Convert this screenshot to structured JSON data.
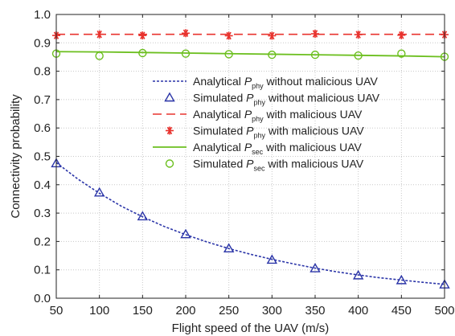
{
  "chart_data": {
    "type": "line",
    "title": "",
    "xlabel": "Flight speed of the UAV (m/s)",
    "ylabel": "Connectivity probability",
    "xlim": [
      50,
      500
    ],
    "ylim": [
      0.0,
      1.0
    ],
    "xticks": [
      "50",
      "100",
      "150",
      "200",
      "250",
      "300",
      "350",
      "400",
      "450",
      "500"
    ],
    "yticks": [
      "0.0",
      "0.1",
      "0.2",
      "0.3",
      "0.4",
      "0.5",
      "0.6",
      "0.7",
      "0.8",
      "0.9",
      "1.0"
    ],
    "grid": true,
    "legend_position": "center-right",
    "series": [
      {
        "name": "Analytical P_phy without malicious UAV",
        "legend": {
          "pre": "Analytical ",
          "sym": "P",
          "sub": "phy",
          "post": " without malicious UAV"
        },
        "style": "dotted-line",
        "color": "#2b35a8",
        "x": [
          50,
          75,
          100,
          125,
          150,
          175,
          200,
          225,
          250,
          275,
          300,
          325,
          350,
          375,
          400,
          425,
          450,
          475,
          500
        ],
        "y": [
          0.478,
          0.42,
          0.37,
          0.325,
          0.287,
          0.253,
          0.224,
          0.198,
          0.175,
          0.155,
          0.137,
          0.121,
          0.106,
          0.093,
          0.082,
          0.072,
          0.064,
          0.056,
          0.049
        ]
      },
      {
        "name": "Simulated P_phy without malicious UAV",
        "legend": {
          "pre": "Simulated ",
          "sym": "P",
          "sub": "phy",
          "post": " without malicious UAV"
        },
        "style": "triangle-marker",
        "color": "#2b35a8",
        "x": [
          50,
          100,
          150,
          200,
          250,
          300,
          350,
          400,
          450,
          500
        ],
        "y": [
          0.475,
          0.372,
          0.288,
          0.225,
          0.175,
          0.135,
          0.105,
          0.08,
          0.063,
          0.048
        ]
      },
      {
        "name": "Analytical P_phy with malicious UAV",
        "legend": {
          "pre": "Analytical ",
          "sym": "P",
          "sub": "phy",
          "post": " with malicious UAV"
        },
        "style": "dashed-line",
        "color": "#e8332e",
        "x": [
          50,
          500
        ],
        "y": [
          0.93,
          0.93
        ]
      },
      {
        "name": "Simulated P_phy with malicious UAV",
        "legend": {
          "pre": "Simulated ",
          "sym": "P",
          "sub": "phy",
          "post": " with malicious UAV"
        },
        "style": "asterisk-marker",
        "color": "#e8332e",
        "x": [
          50,
          100,
          150,
          200,
          250,
          300,
          350,
          400,
          450,
          500
        ],
        "y": [
          0.926,
          0.93,
          0.926,
          0.934,
          0.925,
          0.925,
          0.932,
          0.929,
          0.927,
          0.929
        ]
      },
      {
        "name": "Analytical P_sec with malicious UAV",
        "legend": {
          "pre": "Analytical ",
          "sym": "P",
          "sub": "sec",
          "post": " with malicious UAV"
        },
        "style": "solid-line",
        "color": "#6cbf1f",
        "x": [
          50,
          100,
          150,
          200,
          250,
          300,
          350,
          400,
          450,
          500
        ],
        "y": [
          0.869,
          0.868,
          0.866,
          0.864,
          0.862,
          0.86,
          0.858,
          0.856,
          0.854,
          0.851
        ]
      },
      {
        "name": "Simulated P_sec with malicious UAV",
        "legend": {
          "pre": "Simulated ",
          "sym": "P",
          "sub": "sec",
          "post": " with malicious UAV"
        },
        "style": "circle-marker",
        "color": "#6cbf1f",
        "x": [
          50,
          100,
          150,
          200,
          250,
          300,
          350,
          400,
          450,
          500
        ],
        "y": [
          0.862,
          0.854,
          0.864,
          0.862,
          0.86,
          0.858,
          0.858,
          0.855,
          0.862,
          0.851
        ]
      }
    ]
  }
}
